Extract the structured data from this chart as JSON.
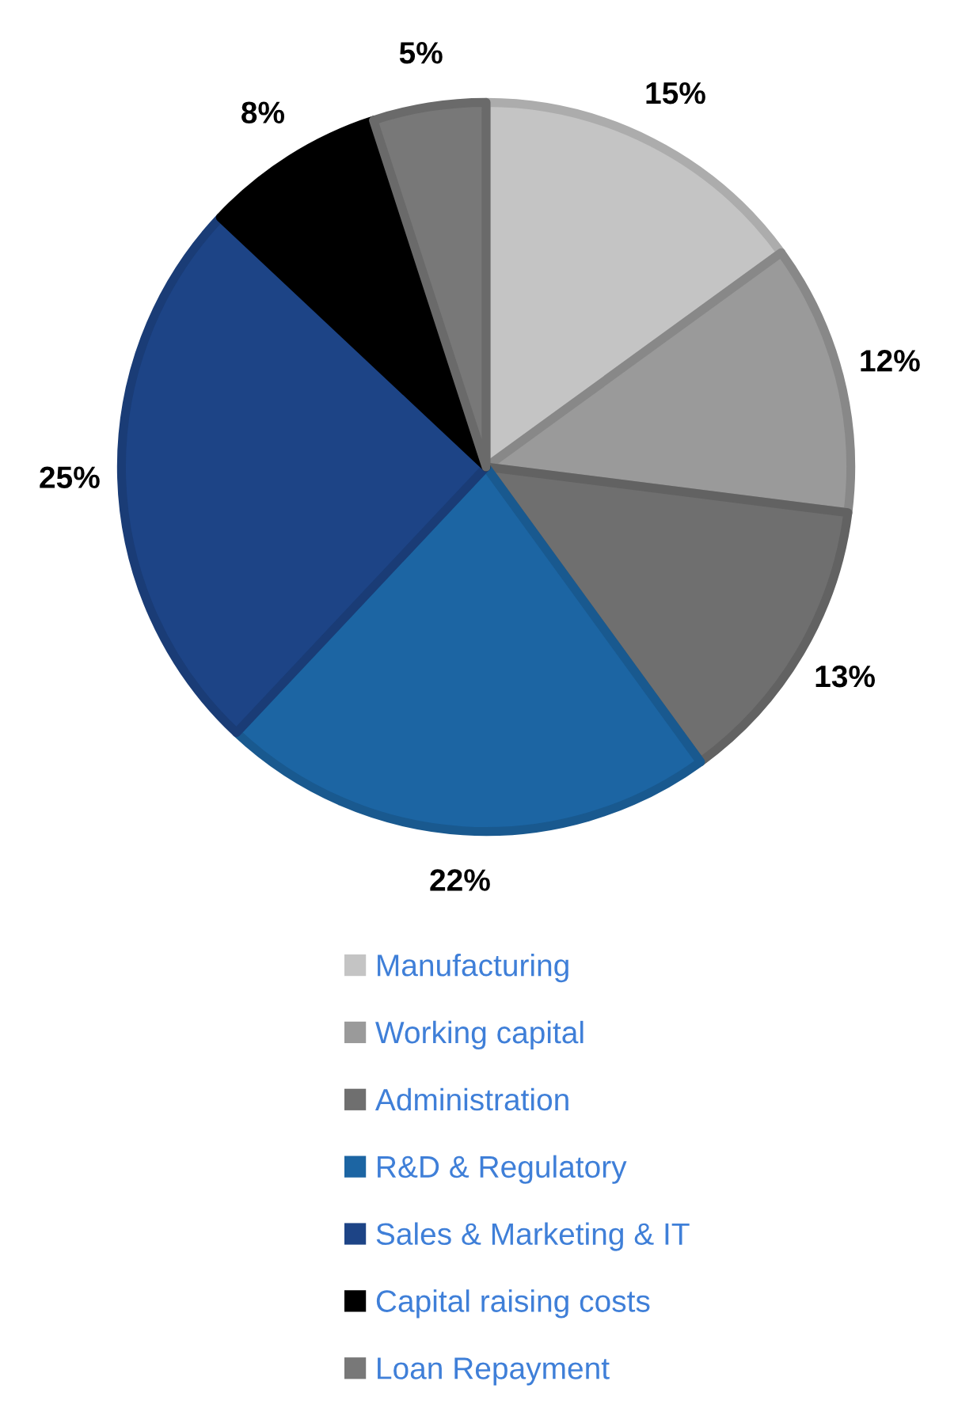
{
  "chart_data": {
    "type": "pie",
    "categories": [
      "Manufacturing",
      "Working capital",
      "Administration",
      "R&D & Regulatory",
      "Sales & Marketing & IT",
      "Capital raising costs",
      "Loan Repayment"
    ],
    "values": [
      15,
      12,
      13,
      22,
      25,
      8,
      5
    ],
    "colors": [
      "#c4c4c4",
      "#9a9a9a",
      "#6f6f6f",
      "#1c65a3",
      "#1d4486",
      "#000000",
      "#787878"
    ],
    "value_labels": [
      "15%",
      "12%",
      "13%",
      "22%",
      "25%",
      "8%",
      "5%"
    ],
    "legend": "bottom"
  }
}
